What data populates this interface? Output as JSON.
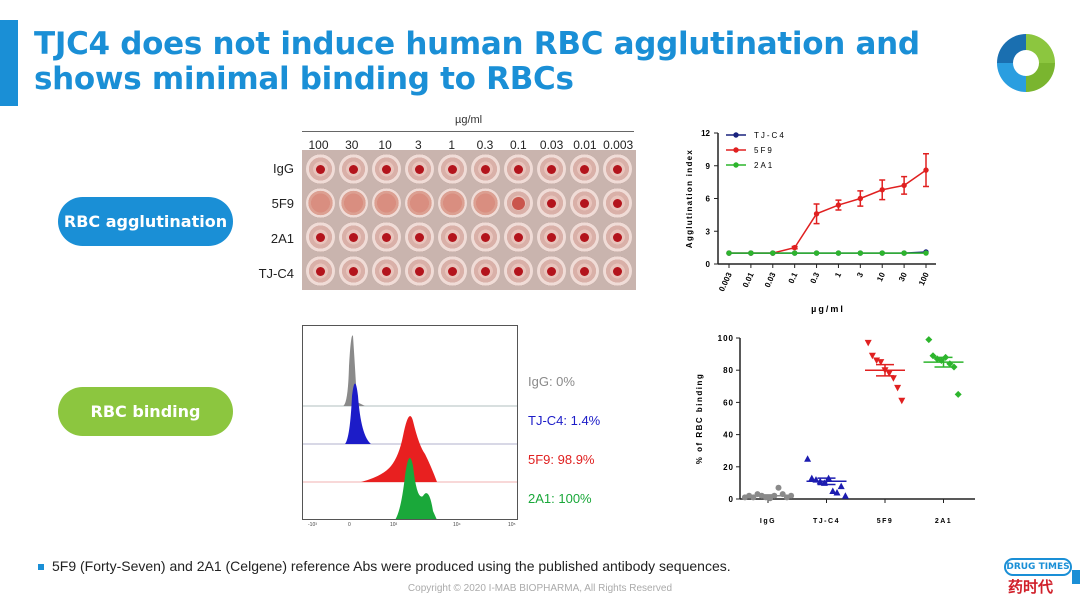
{
  "header": {
    "title": "TJC4 does not induce human RBC agglutination and shows minimal binding to RBCs"
  },
  "pills": {
    "agglutination": "RBC agglutination",
    "binding": "RBC binding"
  },
  "plate": {
    "unit": "µg/ml",
    "concentrations": [
      "100",
      "30",
      "10",
      "3",
      "1",
      "0.3",
      "0.1",
      "0.03",
      "0.01",
      "0.003"
    ],
    "rows": [
      "IgG",
      "5F9",
      "2A1",
      "TJ-C4"
    ]
  },
  "flow": {
    "labels": [
      {
        "text": "IgG: 0%",
        "color": "#8a8a8a"
      },
      {
        "text": "TJ-C4: 1.4%",
        "color": "#1c1cc8"
      },
      {
        "text": "5F9: 98.9%",
        "color": "#e02020"
      },
      {
        "text": "2A1: 100%",
        "color": "#1aa83a"
      }
    ],
    "x_ticks": [
      "-10³",
      "0",
      "10³",
      "10⁴",
      "10⁵"
    ]
  },
  "chart_data": [
    {
      "type": "line",
      "title": "",
      "xlabel": "µg/ml",
      "ylabel": "Agglutination index",
      "ylim": [
        0,
        12
      ],
      "yticks": [
        "0",
        "3",
        "6",
        "9",
        "12"
      ],
      "categories": [
        "0.003",
        "0.01",
        "0.03",
        "0.1",
        "0.3",
        "1",
        "3",
        "10",
        "30",
        "100"
      ],
      "legend": "top-left",
      "series": [
        {
          "name": "TJ-C4",
          "color": "#1a237e",
          "values": [
            1,
            1,
            1,
            1,
            1,
            1,
            1,
            1,
            1,
            1.1
          ],
          "errors": [
            0,
            0,
            0,
            0,
            0,
            0,
            0,
            0,
            0,
            0
          ]
        },
        {
          "name": "5F9",
          "color": "#e02020",
          "values": [
            1,
            1,
            1,
            1.5,
            4.6,
            5.4,
            6.0,
            6.8,
            7.2,
            8.6
          ],
          "errors": [
            0,
            0,
            0,
            0.1,
            0.9,
            0.45,
            0.7,
            0.9,
            0.8,
            1.5
          ]
        },
        {
          "name": "2A1",
          "color": "#2db52d",
          "values": [
            1,
            1,
            1,
            1,
            1,
            1,
            1,
            1,
            1,
            1
          ],
          "errors": [
            0,
            0,
            0,
            0,
            0,
            0,
            0,
            0,
            0,
            0
          ]
        }
      ]
    },
    {
      "type": "scatter",
      "title": "",
      "xlabel": "",
      "ylabel": "% of RBC binding",
      "ylim": [
        0,
        100
      ],
      "yticks": [
        "0",
        "20",
        "40",
        "60",
        "80",
        "100"
      ],
      "categories": [
        "IgG",
        "TJ-C4",
        "5F9",
        "2A1"
      ],
      "series": [
        {
          "name": "IgG",
          "color": "#8a8a8a",
          "marker": "circle",
          "values": [
            1,
            2,
            1,
            3,
            2,
            1,
            0.5,
            2,
            7,
            3,
            1,
            2
          ],
          "mean": 2,
          "sem": 0.6
        },
        {
          "name": "TJ-C4",
          "color": "#1c1cb0",
          "marker": "triangle-up",
          "values": [
            25,
            13,
            12,
            11,
            10,
            13,
            5,
            4,
            8,
            2
          ],
          "mean": 11,
          "sem": 2
        },
        {
          "name": "5F9",
          "color": "#e02020",
          "marker": "triangle-down",
          "values": [
            97,
            89,
            86,
            85,
            80,
            78,
            75,
            69,
            61
          ],
          "mean": 80,
          "sem": 3.5
        },
        {
          "name": "2A1",
          "color": "#2db52d",
          "marker": "diamond",
          "values": [
            99,
            89,
            87,
            86,
            88,
            84,
            82,
            65
          ],
          "mean": 85,
          "sem": 3
        }
      ]
    }
  ],
  "footnote": "5F9 (Forty-Seven) and 2A1 (Celgene) reference Abs were produced using the published antibody sequences.",
  "copyright": "Copyright © 2020 I-MAB BIOPHARMA, All Rights Reserved",
  "watermark": {
    "en": "DRUG TIMES",
    "cn": "药时代"
  }
}
